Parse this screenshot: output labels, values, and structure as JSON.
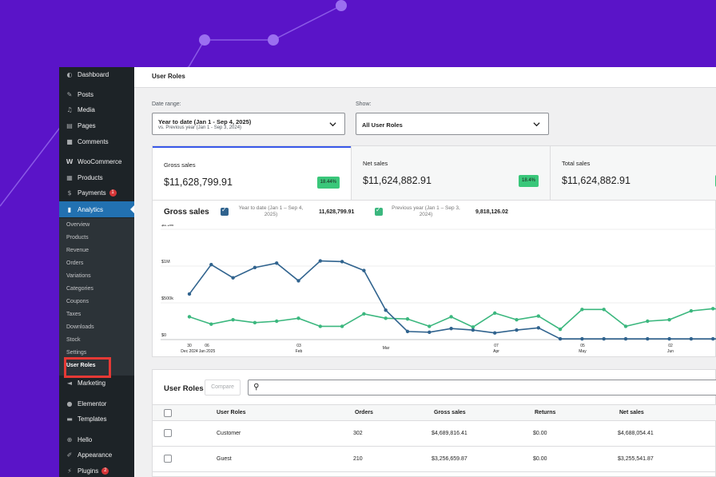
{
  "sidebar": {
    "items": [
      {
        "label": "Dashboard",
        "icon": "dashboard-icon"
      },
      {
        "label": "Posts",
        "icon": "pin-icon"
      },
      {
        "label": "Media",
        "icon": "media-icon"
      },
      {
        "label": "Pages",
        "icon": "pages-icon"
      },
      {
        "label": "Comments",
        "icon": "comment-icon"
      },
      {
        "label": "WooCommerce",
        "icon": "woocommerce-icon"
      },
      {
        "label": "Products",
        "icon": "products-icon"
      },
      {
        "label": "Payments",
        "icon": "payments-icon",
        "badge": "1"
      },
      {
        "label": "Analytics",
        "icon": "analytics-icon"
      },
      {
        "label": "Marketing",
        "icon": "megaphone-icon"
      },
      {
        "label": "Elementor",
        "icon": "elementor-icon"
      },
      {
        "label": "Templates",
        "icon": "folder-icon"
      },
      {
        "label": "Hello",
        "icon": "hello-icon"
      },
      {
        "label": "Appearance",
        "icon": "brush-icon"
      },
      {
        "label": "Plugins",
        "icon": "plug-icon",
        "badge": "2"
      }
    ],
    "analytics_submenu": [
      "Overview",
      "Products",
      "Revenue",
      "Orders",
      "Variations",
      "Categories",
      "Coupons",
      "Taxes",
      "Downloads",
      "Stock",
      "Settings",
      "User Roles"
    ]
  },
  "header": {
    "title": "User Roles"
  },
  "filters": {
    "date_label": "Date range:",
    "date_value": "Year to date (Jan 1 - Sep 4, 2025)",
    "date_compare": "vs. Previous year (Jan 1 - Sep 3, 2024)",
    "show_label": "Show:",
    "show_value": "All User Roles"
  },
  "summary_cards": [
    {
      "title": "Gross sales",
      "value": "$11,628,799.91",
      "delta": "18.44%"
    },
    {
      "title": "Net sales",
      "value": "$11,624,882.91",
      "delta": "18.4%"
    },
    {
      "title": "Total sales",
      "value": "$11,624,882.91"
    }
  ],
  "chart": {
    "title": "Gross sales",
    "legend": [
      {
        "label": "Year to date (Jan 1 – Sep 4, 2025)",
        "total": "11,628,799.91",
        "color": "#30638e"
      },
      {
        "label": "Previous year (Jan 1 – Sep 3, 2024)",
        "total": "9,818,126.02",
        "color": "#3bb77e"
      }
    ]
  },
  "chart_data": {
    "type": "line",
    "title": "Gross sales",
    "y_ticks": [
      "$0",
      "$500k",
      "$1M",
      "$1.5M"
    ],
    "ylim": [
      0,
      1500000
    ],
    "x_ticks": [
      {
        "day": "30",
        "month": "Dec 2024"
      },
      {
        "day": "06",
        "month": "Jan 2025"
      },
      {
        "day": "03",
        "month": "Feb"
      },
      {
        "day": "",
        "month": "Mar"
      },
      {
        "day": "07",
        "month": "Apr"
      },
      {
        "day": "05",
        "month": "May"
      },
      {
        "day": "02",
        "month": "Jun"
      }
    ],
    "series": [
      {
        "name": "Year to date (Jan 1 – Sep 4, 2025)",
        "color": "#30638e",
        "values": [
          620000,
          1020000,
          840000,
          980000,
          1040000,
          800000,
          1070000,
          1060000,
          940000,
          400000,
          110000,
          100000,
          150000,
          130000,
          90000,
          130000,
          160000,
          10000,
          10000,
          10000,
          10000,
          10000,
          10000,
          10000,
          10000,
          10000,
          10000
        ]
      },
      {
        "name": "Previous year (Jan 1 – Sep 3, 2024)",
        "color": "#3bb77e",
        "values": [
          310000,
          210000,
          270000,
          230000,
          250000,
          290000,
          180000,
          180000,
          350000,
          290000,
          280000,
          180000,
          310000,
          170000,
          360000,
          270000,
          320000,
          140000,
          410000,
          410000,
          180000,
          250000,
          270000,
          390000,
          420000,
          400000,
          400000
        ]
      }
    ]
  },
  "table": {
    "title": "User Roles",
    "compare_label": "Compare",
    "columns": [
      "User Roles",
      "Orders",
      "Gross sales",
      "Returns",
      "Net sales"
    ],
    "rows": [
      {
        "role": "Customer",
        "orders": "302",
        "gross": "$4,689,816.41",
        "returns": "$0.00",
        "net": "$4,688,054.41"
      },
      {
        "role": "Guest",
        "orders": "210",
        "gross": "$3,256,659.87",
        "returns": "$0.00",
        "net": "$3,255,541.87"
      }
    ]
  }
}
